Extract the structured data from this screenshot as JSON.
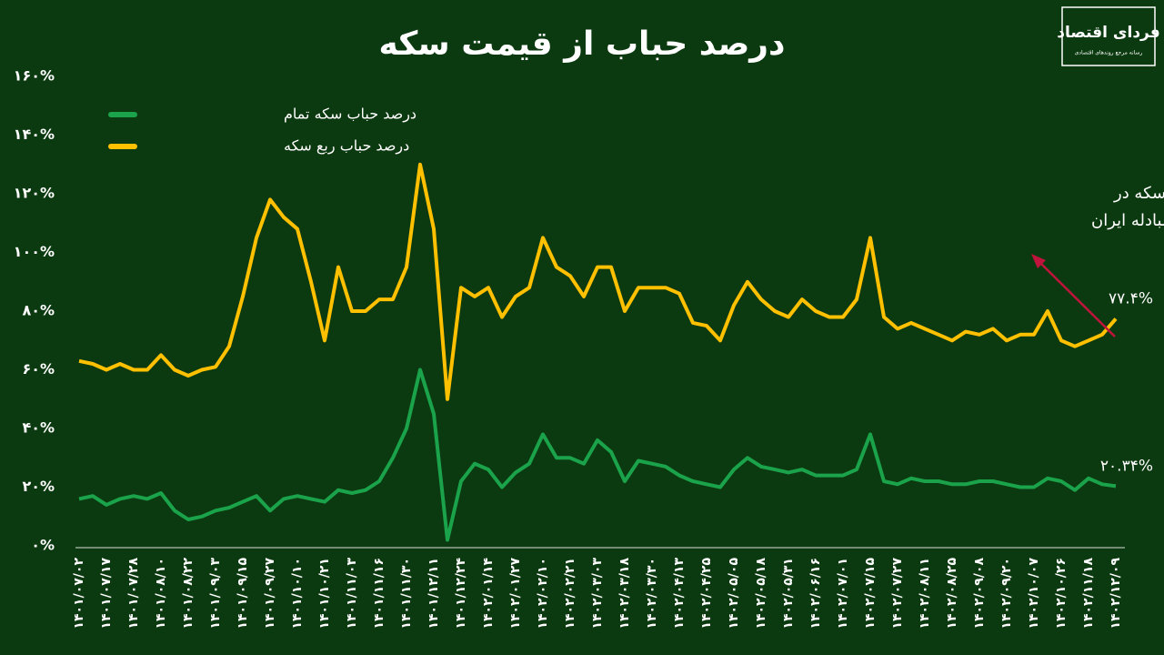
{
  "chart_data": {
    "type": "line",
    "title": "درصد حباب از قیمت سکه",
    "logo": {
      "title": "فردای اقتصاد",
      "subtitle": "رسانه مرجع روندهای اقتصادی"
    },
    "annotation": {
      "lines": [
        "آغاز حراج  ربع سکه در",
        "مرکز مبادله ایران"
      ],
      "color": "#c0143c"
    },
    "categories": [
      "۱۴۰۱/۰۷/۰۲",
      null,
      "۱۴۰۱/۰۷/۱۷",
      null,
      "۱۴۰۱/۰۷/۲۸",
      null,
      "۱۴۰۱/۰۸/۱۰",
      null,
      "۱۴۰۱/۰۸/۲۲",
      null,
      "۱۴۰۱/۰۹/۰۳",
      null,
      "۱۴۰۱/۰۹/۱۵",
      null,
      "۱۴۰۱/۰۹/۲۷",
      null,
      "۱۴۰۱/۱۰/۱۰",
      null,
      "۱۴۰۱/۱۰/۲۱",
      null,
      "۱۴۰۱/۱۱/۰۳",
      null,
      "۱۴۰۱/۱۱/۱۶",
      null,
      "۱۴۰۱/۱۱/۳۰",
      null,
      "۱۴۰۱/۱۲/۱۱",
      null,
      "۱۴۰۱/۱۲/۲۴",
      null,
      "۱۴۰۲/۰۱/۱۴",
      null,
      "۱۴۰۲/۰۱/۲۷",
      null,
      "۱۴۰۲/۰۲/۱۰",
      null,
      "۱۴۰۲/۰۲/۲۱",
      null,
      "۱۴۰۲/۰۳/۰۳",
      null,
      "۱۴۰۲/۰۳/۱۸",
      null,
      "۱۴۰۲/۰۳/۳۰",
      null,
      "۱۴۰۲/۰۴/۱۳",
      null,
      "۱۴۰۲/۰۴/۲۵",
      null,
      "۱۴۰۲/۰۵/۰۵",
      null,
      "۱۴۰۲/۰۵/۱۸",
      null,
      "۱۴۰۲/۰۵/۳۱",
      null,
      "۱۴۰۲/۰۶/۱۶",
      null,
      "۱۴۰۲/۰۷/۰۱",
      null,
      "۱۴۰۲/۰۷/۱۵",
      null,
      "۱۴۰۲/۰۷/۲۷",
      null,
      "۱۴۰۲/۰۸/۱۱",
      null,
      "۱۴۰۲/۰۸/۲۵",
      null,
      "۱۴۰۲/۰۹/۰۸",
      null,
      "۱۴۰۲/۰۹/۲۰",
      null,
      "۱۴۰۲/۱۰/۰۷",
      null,
      "۱۴۰۲/۱۰/۲۶",
      null,
      "۱۴۰۲/۱۱/۱۸",
      null,
      "۱۴۰۲/۱۲/۰۹"
    ],
    "series": [
      {
        "name": "درصد حباب سکه تمام",
        "color": "#1aa34a",
        "values": [
          16,
          17,
          14,
          16,
          17,
          16,
          18,
          12,
          9,
          10,
          12,
          13,
          15,
          17,
          12,
          16,
          17,
          16,
          15,
          19,
          18,
          19,
          22,
          30,
          40,
          60,
          45,
          2,
          22,
          28,
          26,
          20,
          25,
          28,
          38,
          30,
          30,
          28,
          36,
          32,
          22,
          29,
          28,
          27,
          24,
          22,
          21,
          20,
          26,
          30,
          27,
          26,
          25,
          26,
          24,
          24,
          24,
          26,
          38,
          22,
          21,
          23,
          22,
          22,
          21,
          21,
          22,
          22,
          21,
          20,
          20,
          23,
          22,
          19,
          23,
          21,
          20.34
        ],
        "value_labels": [
          null,
          null,
          null,
          null,
          null,
          null,
          null,
          null,
          null,
          null,
          null,
          null,
          null,
          null,
          null,
          null,
          null,
          null,
          null,
          null,
          null,
          null,
          null,
          null,
          null,
          null,
          null,
          null,
          null,
          null,
          null,
          null,
          null,
          null,
          null,
          null,
          null,
          null,
          null,
          null,
          null,
          null,
          null,
          null,
          null,
          null,
          null,
          null,
          null,
          null,
          null,
          null,
          null,
          null,
          null,
          null,
          null,
          null,
          null,
          null,
          null,
          null,
          null,
          null,
          null,
          null,
          null,
          null,
          null,
          null,
          null,
          null,
          null,
          null,
          null,
          null,
          "۲۰.۳۴%"
        ]
      },
      {
        "name": "درصد حباب ربع سکه",
        "color": "#ffc000",
        "values": [
          63,
          62,
          60,
          62,
          60,
          60,
          65,
          60,
          58,
          60,
          61,
          68,
          85,
          105,
          118,
          112,
          108,
          90,
          70,
          95,
          80,
          80,
          84,
          84,
          95,
          130,
          108,
          50,
          88,
          85,
          88,
          78,
          85,
          88,
          105,
          95,
          92,
          85,
          95,
          95,
          80,
          88,
          88,
          88,
          86,
          76,
          75,
          70,
          82,
          90,
          84,
          80,
          78,
          84,
          80,
          78,
          78,
          84,
          105,
          78,
          74,
          76,
          74,
          72,
          70,
          73,
          72,
          74,
          70,
          72,
          72,
          80,
          70,
          68,
          70,
          72,
          77.4
        ],
        "value_labels": [
          null,
          null,
          null,
          null,
          null,
          null,
          null,
          null,
          null,
          null,
          null,
          null,
          null,
          null,
          null,
          null,
          null,
          null,
          null,
          null,
          null,
          null,
          null,
          null,
          null,
          null,
          null,
          null,
          null,
          null,
          null,
          null,
          null,
          null,
          null,
          null,
          null,
          null,
          null,
          null,
          null,
          null,
          null,
          null,
          null,
          null,
          null,
          null,
          null,
          null,
          null,
          null,
          null,
          null,
          null,
          null,
          null,
          null,
          null,
          null,
          null,
          null,
          null,
          null,
          null,
          null,
          null,
          null,
          null,
          null,
          null,
          null,
          null,
          null,
          null,
          null,
          "۷۷.۴%"
        ]
      }
    ],
    "ylim": [
      0,
      160
    ],
    "yticks": [
      {
        "value": 0,
        "label": "۰%"
      },
      {
        "value": 20,
        "label": "۲۰%"
      },
      {
        "value": 40,
        "label": "۴۰%"
      },
      {
        "value": 60,
        "label": "۶۰%"
      },
      {
        "value": 80,
        "label": "۸۰%"
      },
      {
        "value": 100,
        "label": "۱۰۰%"
      },
      {
        "value": 120,
        "label": "۱۲۰%"
      },
      {
        "value": 140,
        "label": "۱۴۰%"
      },
      {
        "value": 160,
        "label": "۱۶۰%"
      }
    ],
    "grid": false,
    "legend": "upper left"
  }
}
